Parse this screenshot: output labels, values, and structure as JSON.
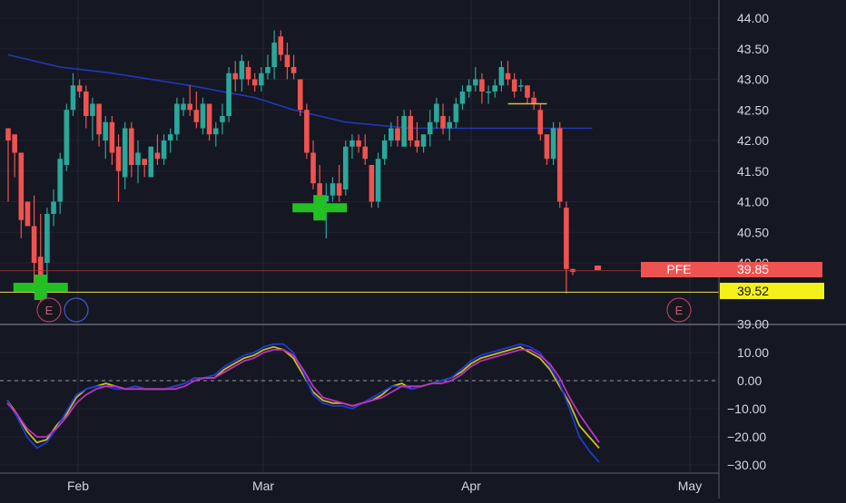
{
  "chart_data": [
    {
      "type": "candlestick",
      "symbol": "PFE",
      "last_price_label": "39.85",
      "marked_price_label": "39.52",
      "marked_price": 39.52,
      "ylim": [
        38.85,
        44.35
      ],
      "yticks": [
        "44.00",
        "43.50",
        "43.00",
        "42.50",
        "42.00",
        "41.50",
        "41.00",
        "40.50",
        "40.00",
        "39.00"
      ],
      "xticks": [
        "Feb",
        "Mar",
        "Apr",
        "May"
      ],
      "earnings_labels": [
        "E",
        "E"
      ],
      "candles": [
        [
          42.2,
          42.2,
          41.0,
          42.0
        ],
        [
          42.1,
          42.1,
          41.4,
          41.8
        ],
        [
          41.8,
          41.8,
          40.4,
          40.7
        ],
        [
          41.0,
          41.0,
          40.6,
          40.6
        ],
        [
          40.6,
          41.1,
          39.5,
          40.0
        ],
        [
          40.1,
          40.8,
          39.3,
          39.8
        ],
        [
          40.0,
          40.9,
          39.6,
          40.8
        ],
        [
          40.8,
          41.2,
          40.6,
          41.0
        ],
        [
          41.0,
          41.8,
          40.8,
          41.7
        ],
        [
          41.6,
          42.6,
          41.5,
          42.5
        ],
        [
          42.5,
          43.1,
          42.4,
          42.9
        ],
        [
          42.9,
          43.0,
          42.7,
          42.8
        ],
        [
          42.8,
          42.9,
          42.2,
          42.4
        ],
        [
          42.4,
          42.7,
          42.0,
          42.6
        ],
        [
          42.6,
          42.6,
          41.9,
          42.1
        ],
        [
          42.0,
          42.4,
          41.7,
          42.3
        ],
        [
          42.3,
          42.4,
          41.6,
          41.8
        ],
        [
          41.9,
          42.1,
          41.0,
          41.5
        ],
        [
          41.4,
          42.3,
          41.2,
          42.2
        ],
        [
          42.2,
          42.3,
          41.4,
          41.6
        ],
        [
          41.6,
          42.0,
          41.3,
          41.8
        ],
        [
          41.7,
          41.7,
          41.4,
          41.6
        ],
        [
          41.4,
          41.9,
          41.4,
          41.9
        ],
        [
          41.8,
          42.1,
          41.6,
          41.7
        ],
        [
          41.7,
          42.1,
          41.6,
          42.0
        ],
        [
          42.0,
          42.2,
          41.8,
          42.1
        ],
        [
          42.1,
          42.7,
          42.0,
          42.6
        ],
        [
          42.5,
          42.7,
          42.4,
          42.6
        ],
        [
          42.6,
          42.9,
          42.4,
          42.5
        ],
        [
          42.5,
          42.8,
          42.2,
          42.3
        ],
        [
          42.2,
          42.7,
          42.1,
          42.6
        ],
        [
          42.6,
          42.6,
          42.0,
          42.1
        ],
        [
          42.1,
          42.3,
          41.9,
          42.2
        ],
        [
          42.3,
          42.6,
          42.1,
          42.4
        ],
        [
          42.4,
          43.2,
          42.3,
          43.1
        ],
        [
          43.1,
          43.3,
          42.8,
          43.0
        ],
        [
          43.0,
          43.4,
          42.8,
          43.3
        ],
        [
          43.2,
          43.3,
          42.9,
          43.0
        ],
        [
          43.0,
          43.1,
          42.8,
          42.9
        ],
        [
          42.9,
          43.2,
          42.8,
          43.1
        ],
        [
          43.1,
          43.4,
          43.0,
          43.2
        ],
        [
          43.2,
          43.8,
          43.0,
          43.6
        ],
        [
          43.7,
          43.8,
          43.3,
          43.4
        ],
        [
          43.4,
          43.6,
          43.0,
          43.2
        ],
        [
          43.2,
          43.4,
          43.0,
          43.1
        ],
        [
          43.0,
          43.0,
          42.4,
          42.5
        ],
        [
          42.5,
          42.6,
          41.7,
          41.8
        ],
        [
          41.8,
          42.0,
          41.2,
          41.3
        ],
        [
          41.3,
          41.6,
          40.8,
          41.0
        ],
        [
          41.0,
          41.3,
          40.4,
          41.1
        ],
        [
          41.1,
          41.4,
          41.0,
          41.3
        ],
        [
          41.3,
          41.6,
          41.0,
          41.1
        ],
        [
          41.2,
          42.0,
          41.1,
          41.9
        ],
        [
          41.9,
          42.1,
          41.7,
          42.0
        ],
        [
          42.0,
          42.1,
          41.8,
          41.9
        ],
        [
          41.9,
          42.1,
          41.6,
          41.7
        ],
        [
          41.6,
          41.6,
          40.9,
          41.0
        ],
        [
          41.0,
          41.8,
          40.9,
          41.7
        ],
        [
          41.7,
          42.1,
          41.6,
          42.0
        ],
        [
          42.0,
          42.3,
          41.9,
          42.2
        ],
        [
          42.2,
          42.4,
          41.9,
          42.0
        ],
        [
          41.9,
          42.5,
          41.9,
          42.4
        ],
        [
          42.4,
          42.5,
          41.9,
          42.0
        ],
        [
          42.0,
          42.3,
          41.8,
          41.9
        ],
        [
          41.9,
          42.1,
          41.8,
          42.1
        ],
        [
          42.1,
          42.5,
          41.9,
          42.3
        ],
        [
          42.3,
          42.7,
          42.2,
          42.6
        ],
        [
          42.4,
          42.6,
          42.1,
          42.2
        ],
        [
          42.2,
          42.4,
          42.0,
          42.3
        ],
        [
          42.3,
          42.7,
          42.2,
          42.6
        ],
        [
          42.6,
          42.9,
          42.5,
          42.8
        ],
        [
          42.8,
          43.0,
          42.7,
          42.9
        ],
        [
          42.9,
          43.2,
          42.8,
          43.0
        ],
        [
          43.0,
          43.1,
          42.6,
          42.8
        ],
        [
          42.8,
          42.9,
          42.6,
          42.8
        ],
        [
          42.8,
          43.0,
          42.7,
          42.9
        ],
        [
          42.9,
          43.3,
          42.8,
          43.2
        ],
        [
          43.1,
          43.3,
          42.9,
          43.0
        ],
        [
          43.0,
          43.1,
          42.7,
          42.8
        ],
        [
          42.9,
          43.0,
          42.8,
          42.9
        ],
        [
          42.9,
          42.9,
          42.6,
          42.7
        ],
        [
          42.7,
          42.8,
          42.5,
          42.6
        ],
        [
          42.5,
          42.6,
          42.0,
          42.1
        ],
        [
          42.1,
          42.1,
          41.6,
          41.7
        ],
        [
          41.7,
          42.3,
          41.6,
          42.2
        ],
        [
          42.2,
          42.3,
          40.9,
          41.0
        ],
        [
          40.9,
          41.0,
          39.5,
          39.9
        ],
        [
          39.9,
          39.9,
          39.8,
          39.85
        ]
      ],
      "moving_average": {
        "color": "#2238b8",
        "points": [
          [
            0,
            43.4
          ],
          [
            8,
            43.2
          ],
          [
            16,
            43.1
          ],
          [
            28,
            42.9
          ],
          [
            38,
            42.7
          ],
          [
            44,
            42.5
          ],
          [
            52,
            42.3
          ],
          [
            62,
            42.2
          ],
          [
            72,
            42.2
          ],
          [
            82,
            42.2
          ],
          [
            90,
            42.2
          ]
        ]
      },
      "markers": [
        {
          "candle": 5,
          "price": 39.6,
          "color": "#22c022"
        },
        {
          "candle": 48,
          "price": 40.9,
          "color": "#22c022"
        }
      ],
      "small_hline": {
        "x0": 77,
        "x1": 83,
        "price": 42.6,
        "color": "#d8c040"
      }
    },
    {
      "type": "line",
      "ylim": [
        -32,
        17
      ],
      "yticks": [
        "10.00",
        "0.00",
        "-10.00",
        "-20.00",
        "-30.00"
      ],
      "zero_dashed": true,
      "series": [
        {
          "color": "#c8c020",
          "values": [
            -7,
            -12,
            -18,
            -22,
            -21,
            -16,
            -12,
            -6,
            -3,
            -2,
            -1,
            -2,
            -3,
            -2,
            -3,
            -3,
            -3,
            -2,
            -1,
            1,
            1,
            1,
            4,
            6,
            8,
            9,
            11,
            12,
            11,
            8,
            2,
            -4,
            -7,
            -8,
            -8,
            -9,
            -8,
            -7,
            -5,
            -2,
            -1,
            -3,
            -2,
            -1,
            0,
            1,
            3,
            6,
            8,
            9,
            10,
            11,
            12,
            10,
            8,
            4,
            -2,
            -8,
            -16,
            -20,
            -24
          ]
        },
        {
          "color": "#1c3cd0",
          "values": [
            -7,
            -13,
            -20,
            -24,
            -22,
            -17,
            -11,
            -5,
            -3,
            -2,
            -2,
            -3,
            -3,
            -2,
            -3,
            -3,
            -3,
            -2,
            -1,
            1,
            1,
            2,
            5,
            7,
            9,
            10,
            12,
            13,
            13,
            10,
            3,
            -5,
            -8,
            -9,
            -9,
            -10,
            -8,
            -6,
            -4,
            -2,
            -2,
            -3,
            -2,
            -1,
            0,
            1,
            4,
            7,
            9,
            10,
            11,
            12,
            13,
            12,
            10,
            5,
            -1,
            -10,
            -20,
            -25,
            -29
          ]
        },
        {
          "color": "#c030c0",
          "values": [
            -8,
            -12,
            -17,
            -20,
            -20,
            -17,
            -13,
            -8,
            -5,
            -3,
            -2,
            -2,
            -3,
            -3,
            -3,
            -3,
            -3,
            -3,
            -2,
            0,
            1,
            1,
            3,
            5,
            7,
            8,
            10,
            11,
            11,
            9,
            4,
            -2,
            -6,
            -7,
            -8,
            -9,
            -8,
            -7,
            -6,
            -4,
            -2,
            -2,
            -2,
            -1,
            -1,
            0,
            2,
            5,
            7,
            8,
            9,
            10,
            11,
            11,
            9,
            6,
            1,
            -6,
            -12,
            -17,
            -22
          ]
        }
      ]
    }
  ]
}
